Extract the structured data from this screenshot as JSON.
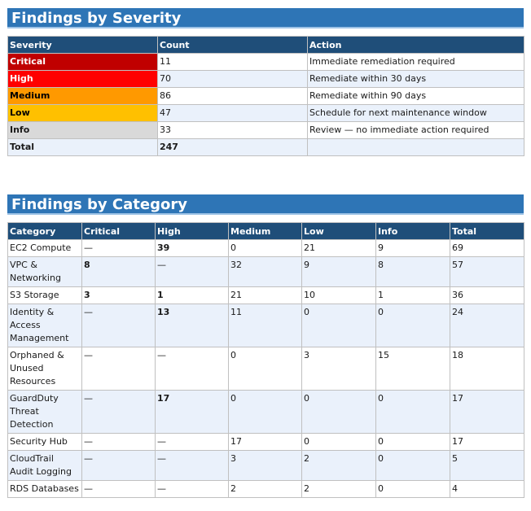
{
  "severity_section": {
    "title": "Findings by Severity",
    "headers": [
      "Severity",
      "Count",
      "Action"
    ],
    "rows": [
      {
        "severity": "Critical",
        "count": "11",
        "action": "Immediate remediation required",
        "bg": "#c00000",
        "fg": "#ffffff"
      },
      {
        "severity": "High",
        "count": "70",
        "action": "Remediate within 30 days",
        "bg": "#ff0000",
        "fg": "#ffffff"
      },
      {
        "severity": "Medium",
        "count": "86",
        "action": "Remediate within 90 days",
        "bg": "#ff9900",
        "fg": "#000000"
      },
      {
        "severity": "Low",
        "count": "47",
        "action": "Schedule for next maintenance window",
        "bg": "#ffc000",
        "fg": "#000000"
      },
      {
        "severity": "Info",
        "count": "33",
        "action": "Review — no immediate action required",
        "bg": "#d9d9d9",
        "fg": "#1a1a1a"
      }
    ],
    "total": {
      "label": "Total",
      "count": "247",
      "action": ""
    }
  },
  "category_section": {
    "title": "Findings by Category",
    "headers": [
      "Category",
      "Critical",
      "High",
      "Medium",
      "Low",
      "Info",
      "Total"
    ],
    "rows": [
      {
        "category": "EC2 Compute",
        "critical": "—",
        "high": "39",
        "medium": "0",
        "low": "21",
        "info": "9",
        "total": "69"
      },
      {
        "category": "VPC & Networking",
        "critical": "8",
        "high": "—",
        "medium": "32",
        "low": "9",
        "info": "8",
        "total": "57"
      },
      {
        "category": "S3 Storage",
        "critical": "3",
        "high": "1",
        "medium": "21",
        "low": "10",
        "info": "1",
        "total": "36"
      },
      {
        "category": "Identity & Access Management",
        "critical": "—",
        "high": "13",
        "medium": "11",
        "low": "0",
        "info": "0",
        "total": "24"
      },
      {
        "category": "Orphaned & Unused Resources",
        "critical": "—",
        "high": "—",
        "medium": "0",
        "low": "3",
        "info": "15",
        "total": "18"
      },
      {
        "category": "GuardDuty Threat Detection",
        "critical": "—",
        "high": "17",
        "medium": "0",
        "low": "0",
        "info": "0",
        "total": "17"
      },
      {
        "category": "Security Hub",
        "critical": "—",
        "high": "—",
        "medium": "17",
        "low": "0",
        "info": "0",
        "total": "17"
      },
      {
        "category": "CloudTrail Audit Logging",
        "critical": "—",
        "high": "—",
        "medium": "3",
        "low": "2",
        "info": "0",
        "total": "5"
      },
      {
        "category": "RDS Databases",
        "critical": "—",
        "high": "—",
        "medium": "2",
        "low": "2",
        "info": "0",
        "total": "4"
      }
    ]
  }
}
